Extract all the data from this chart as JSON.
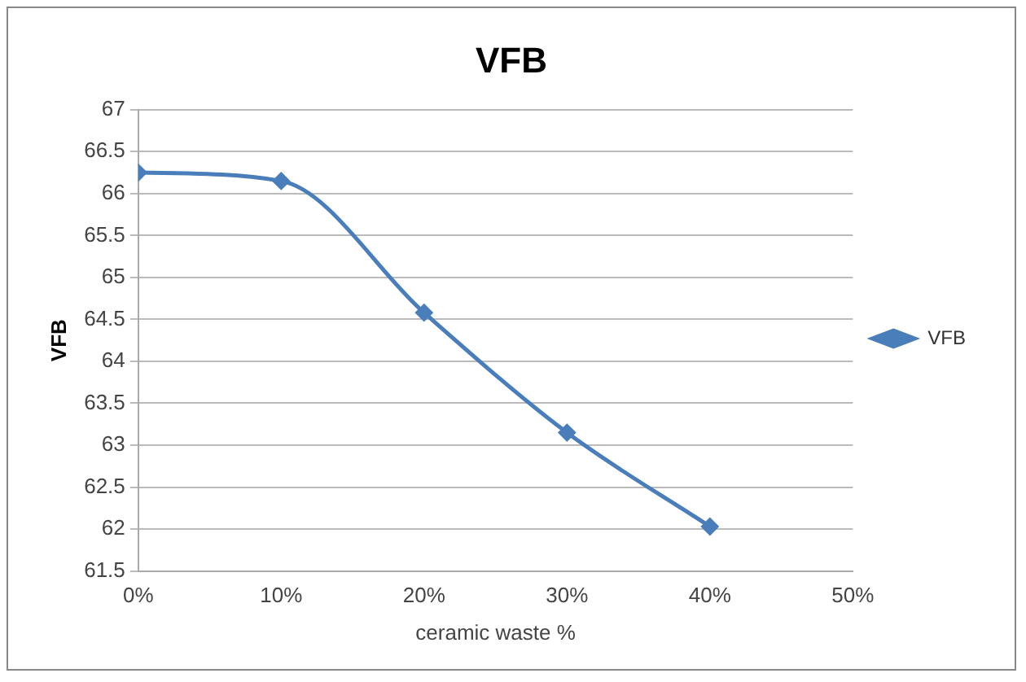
{
  "chart_data": {
    "type": "line",
    "title": "VFB",
    "xlabel": "ceramic waste %",
    "ylabel": "VFB",
    "x": [
      0,
      10,
      20,
      30,
      40
    ],
    "series": [
      {
        "name": "VFB",
        "color": "#4a7ebb",
        "values": [
          66.25,
          66.15,
          64.58,
          63.15,
          62.03
        ]
      }
    ],
    "xlim": [
      0,
      50
    ],
    "xticks": [
      {
        "value": 0,
        "label": "0%"
      },
      {
        "value": 10,
        "label": "10%"
      },
      {
        "value": 20,
        "label": "20%"
      },
      {
        "value": 30,
        "label": "30%"
      },
      {
        "value": 40,
        "label": "40%"
      },
      {
        "value": 50,
        "label": "50%"
      }
    ],
    "ylim": [
      61.5,
      67
    ],
    "yticks": [
      61.5,
      62,
      62.5,
      63,
      63.5,
      64,
      64.5,
      65,
      65.5,
      66,
      66.5,
      67
    ],
    "grid": "y",
    "legend": "right",
    "marker": "diamond",
    "line_style": "solid"
  }
}
